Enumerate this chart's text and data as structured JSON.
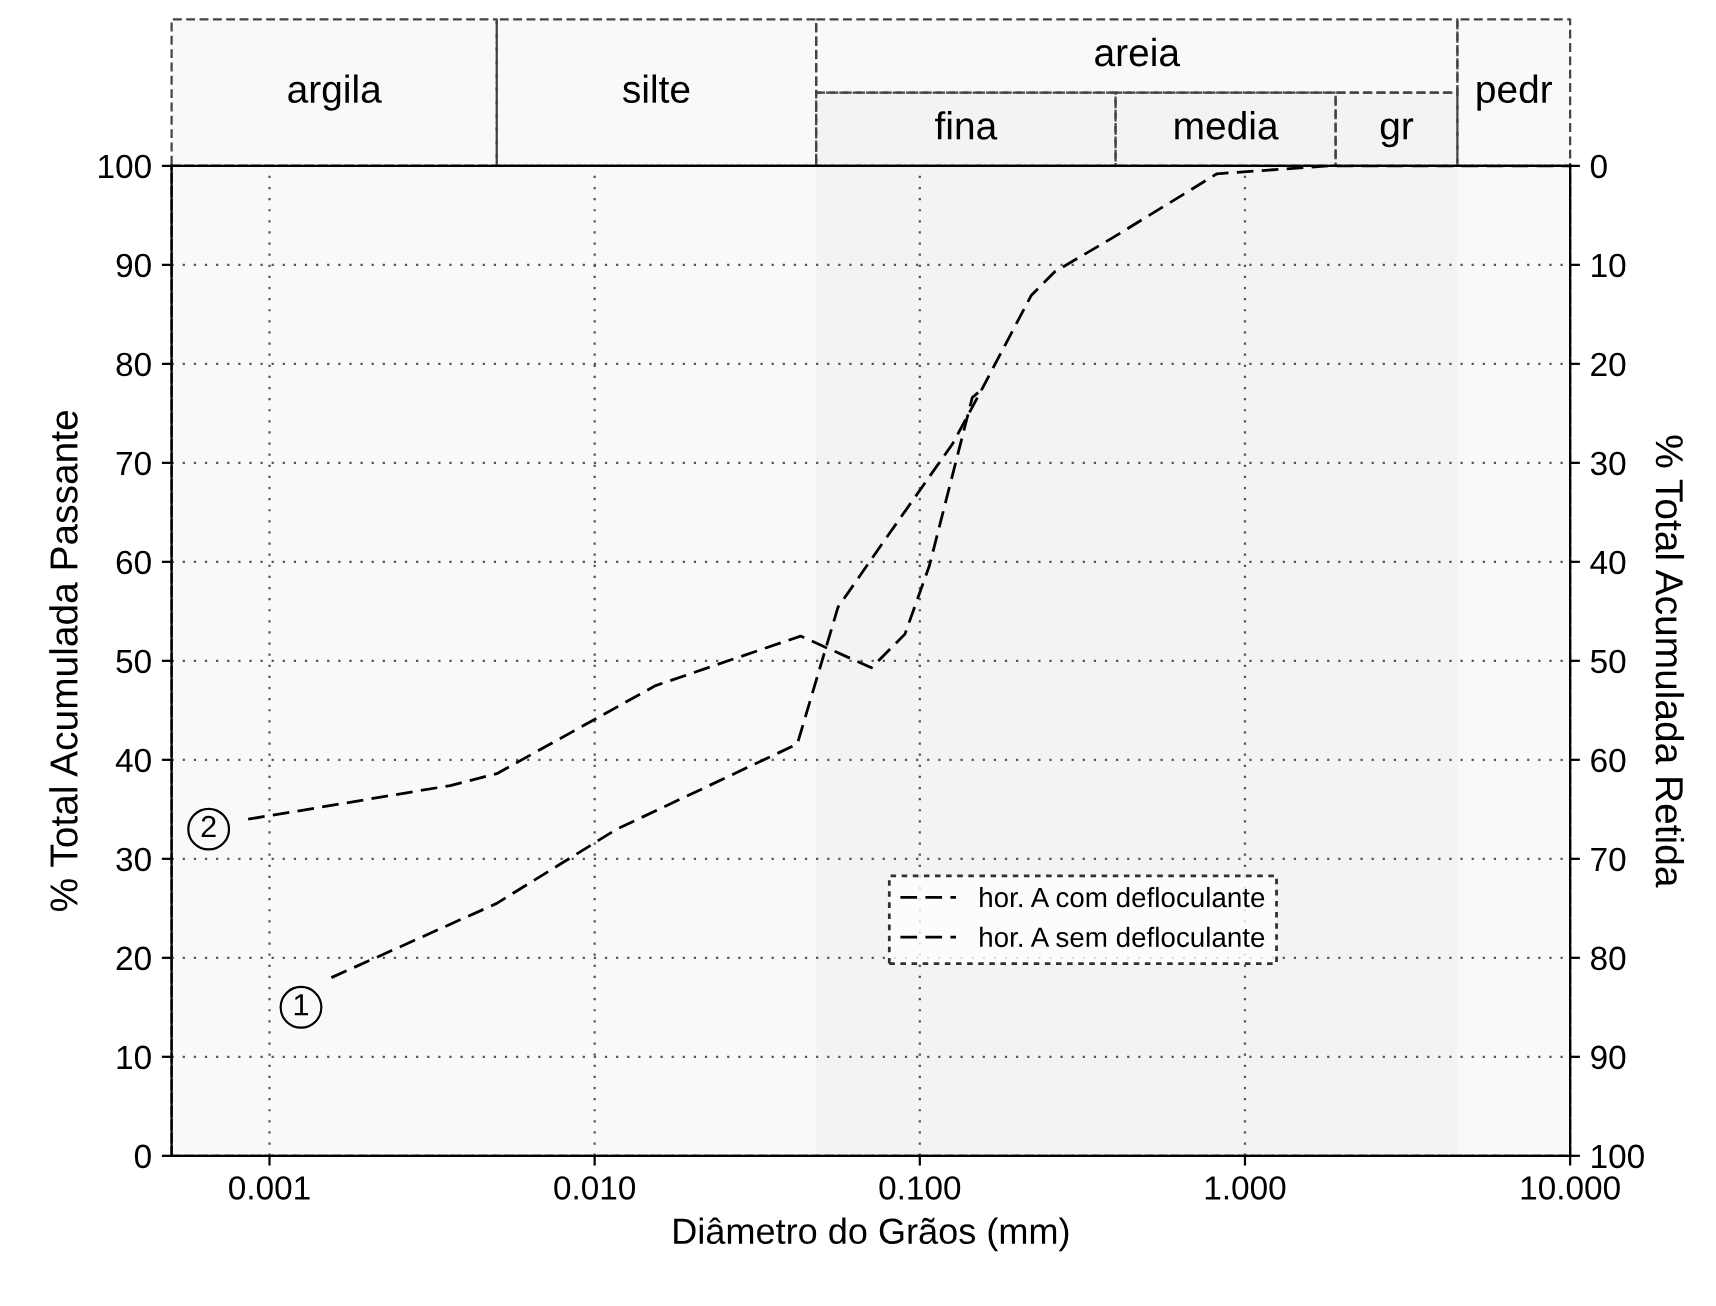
{
  "chart_data": {
    "type": "line",
    "xlabel": "Diâmetro do Grãos (mm)",
    "ylabel": "% Total Acumulada Passante",
    "y2label": "% Total Acumulada Retida",
    "log": "x",
    "xlim": [
      0.0005,
      10
    ],
    "xticks": [
      {
        "value": 0.001,
        "label": "0.001"
      },
      {
        "value": 0.01,
        "label": "0.010"
      },
      {
        "value": 0.1,
        "label": "0.100"
      },
      {
        "value": 1,
        "label": "1.000"
      },
      {
        "value": 10,
        "label": "10.000"
      }
    ],
    "ylim": [
      0,
      100
    ],
    "yticks": [
      0,
      10,
      20,
      30,
      40,
      50,
      60,
      70,
      80,
      90,
      100
    ],
    "y2lim": [
      100,
      0
    ],
    "y2ticks": [
      0,
      10,
      20,
      30,
      40,
      50,
      60,
      70,
      80,
      90,
      100
    ],
    "grid": true,
    "legend": "lower right",
    "line_style": "dashed",
    "series": [
      {
        "name": "hor. A com defloculante",
        "color": "#000000",
        "x": [
          0.00155,
          0.005,
          0.0117,
          0.042,
          0.056,
          0.078,
          0.126,
          0.155,
          0.22,
          0.26,
          0.39,
          0.82,
          1.8,
          4.8,
          10
        ],
        "values": [
          18,
          25.5,
          33,
          41.6,
          55.4,
          62.2,
          71.9,
          77.4,
          86.9,
          89.3,
          92.7,
          99.2,
          100,
          100,
          100
        ]
      },
      {
        "name": "hor. A sem defloculante",
        "color": "#000000",
        "x": [
          0.00086,
          0.0036,
          0.005,
          0.0154,
          0.043,
          0.071,
          0.09,
          0.107,
          0.145,
          0.155
        ],
        "values": [
          34,
          37.4,
          38.6,
          47.5,
          52.5,
          49.3,
          52.7,
          59.6,
          76.6,
          77.4
        ]
      }
    ],
    "annotations": [
      {
        "text": "1",
        "x": 0.00125,
        "y": 15
      },
      {
        "text": "2",
        "x": 0.00065,
        "y": 33
      }
    ],
    "bands": [
      {
        "axis": "x",
        "from": 0.0005,
        "to": 0.005,
        "label": "argila"
      },
      {
        "axis": "x",
        "from": 0.005,
        "to": 0.048,
        "label": "silte"
      },
      {
        "axis": "x",
        "from": 0.048,
        "to": 4.5,
        "label": "areia"
      },
      {
        "axis": "x",
        "from": 0.048,
        "to": 0.4,
        "label": "fina"
      },
      {
        "axis": "x",
        "from": 0.4,
        "to": 1.9,
        "label": "media"
      },
      {
        "axis": "x",
        "from": 1.9,
        "to": 4.5,
        "label": "gr"
      },
      {
        "axis": "x",
        "from": 4.5,
        "to": 10,
        "label": "pedr"
      }
    ]
  }
}
